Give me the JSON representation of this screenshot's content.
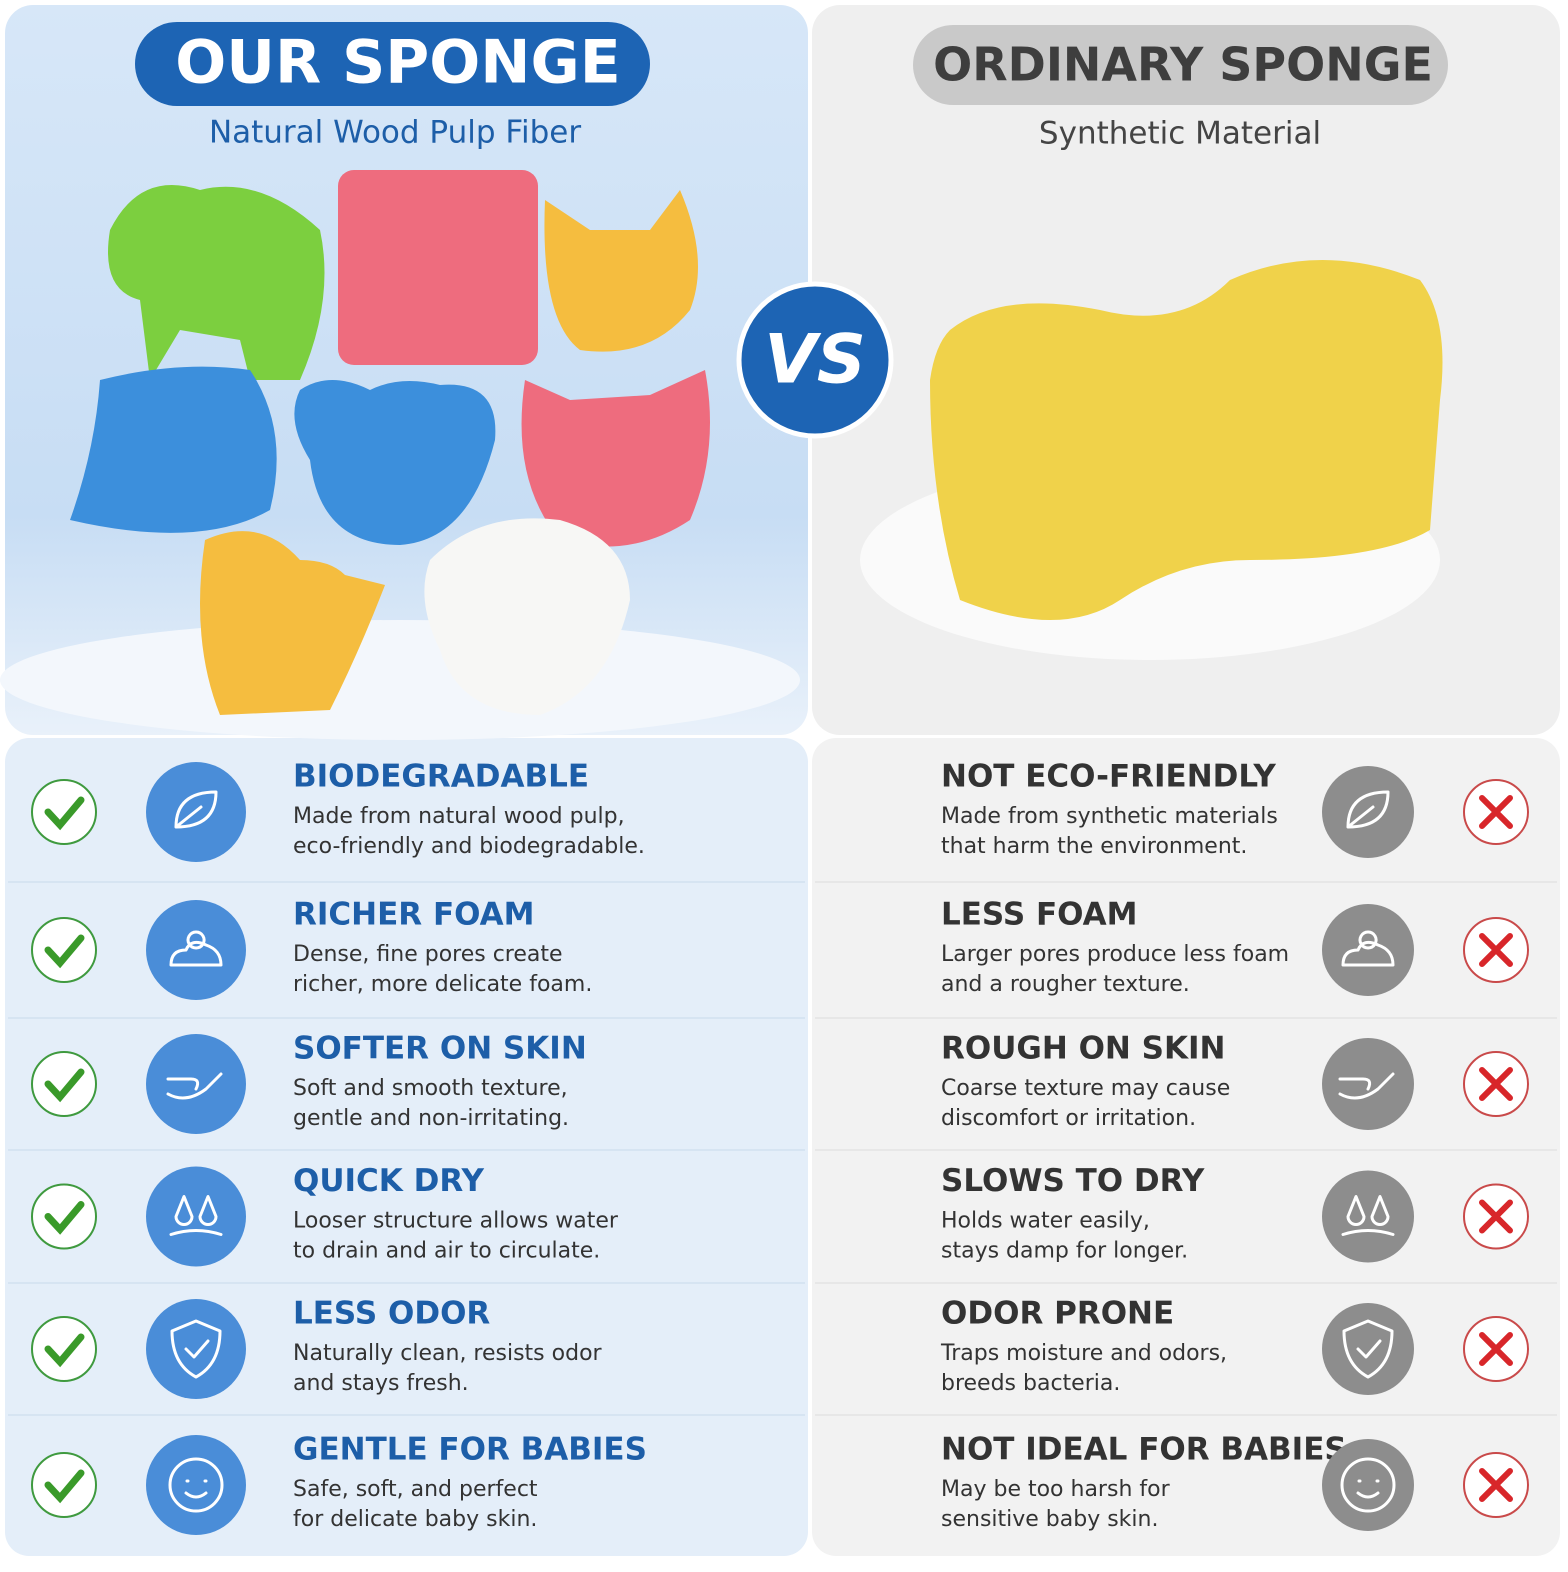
{
  "left": {
    "title": "OUR SPONGE",
    "subtitle": "Natural Wood Pulp Fiber",
    "features": [
      {
        "title": "BIODEGRADABLE",
        "lines": [
          "Made from natural wood pulp,",
          "eco-friendly and biodegradable."
        ]
      },
      {
        "title": "RICHER FOAM",
        "lines": [
          "Dense, fine pores create",
          "richer, more delicate foam."
        ]
      },
      {
        "title": "SOFTER ON SKIN",
        "lines": [
          "Soft and smooth texture,",
          "gentle and non-irritating."
        ]
      },
      {
        "title": "QUICK DRY",
        "lines": [
          "Looser structure allows water",
          "to drain and air to circulate."
        ]
      },
      {
        "title": "LESS ODOR",
        "lines": [
          "Naturally clean, resists odor",
          "and stays fresh."
        ]
      },
      {
        "title": "GENTLE FOR BABIES",
        "lines": [
          "Safe, soft, and perfect",
          "for delicate baby skin."
        ]
      }
    ]
  },
  "vs": "VS",
  "right": {
    "title": "ORDINARY SPONGE",
    "subtitle": "Synthetic Material",
    "features": [
      {
        "title": "NOT ECO-FRIENDLY",
        "lines": [
          "Made from synthetic materials",
          "that harm the environment."
        ]
      },
      {
        "title": "LESS FOAM",
        "lines": [
          "Larger pores produce less foam",
          "and a rougher texture."
        ]
      },
      {
        "title": "ROUGH ON SKIN",
        "lines": [
          "Coarse texture may cause",
          "discomfort or irritation."
        ]
      },
      {
        "title": "SLOWS TO DRY",
        "lines": [
          "Holds water easily,",
          "stays damp for longer."
        ]
      },
      {
        "title": "ODOR PRONE",
        "lines": [
          "Traps moisture and odors,",
          "breeds bacteria."
        ]
      },
      {
        "title": "NOT IDEAL FOR BABIES",
        "lines": [
          "May be too harsh for",
          "sensitive baby skin."
        ]
      }
    ]
  }
}
